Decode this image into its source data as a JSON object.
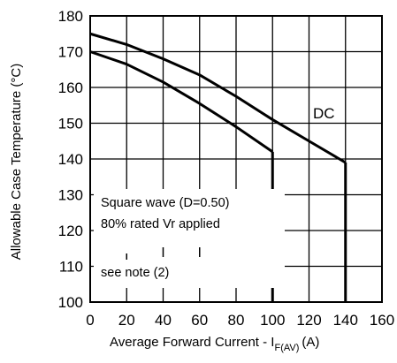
{
  "chart_data": {
    "type": "line",
    "title": "",
    "xlabel": "Average Forward Current - I",
    "xlabel_sub": "F(AV)",
    "xlabel_unit": "(A)",
    "ylabel": "Allowable Case Temperature (°C)",
    "xlim": [
      0,
      160
    ],
    "ylim": [
      100,
      180
    ],
    "x_ticks": [
      0,
      20,
      40,
      60,
      80,
      100,
      120,
      140,
      160
    ],
    "y_ticks": [
      100,
      110,
      120,
      130,
      140,
      150,
      160,
      170,
      180
    ],
    "grid": true,
    "series": [
      {
        "name": "DC",
        "x": [
          0,
          20,
          40,
          60,
          80,
          100,
          120,
          140
        ],
        "y": [
          175,
          172,
          168,
          163.5,
          157.5,
          151,
          145,
          139
        ],
        "drop_to": 100
      },
      {
        "x": [
          0,
          20,
          40,
          60,
          80,
          100
        ],
        "y": [
          170,
          166.5,
          161.5,
          155.5,
          149,
          142
        ],
        "drop_to": 100
      }
    ],
    "annotations": {
      "dc_label": "DC",
      "wave_line1": "Square wave (D=0.50)",
      "wave_line2": "80% rated Vr applied",
      "note": "see note (2)"
    }
  }
}
